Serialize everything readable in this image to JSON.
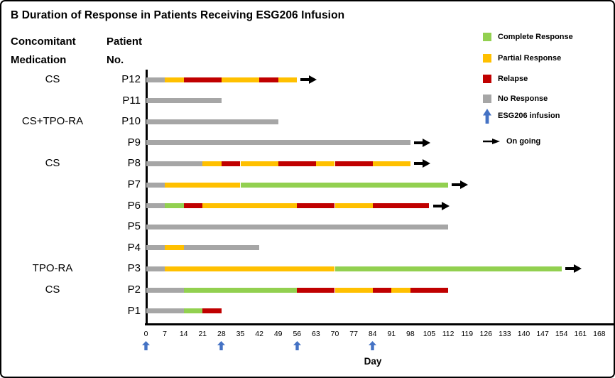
{
  "title": "B Duration of Response in Patients Receiving ESG206 Infusion",
  "left_header": {
    "line1": "Concomitant",
    "line2": "Medication"
  },
  "patient_header": {
    "line1": "Patient",
    "line2": "No."
  },
  "legend": {
    "items": [
      {
        "key": "complete",
        "label": "Complete Response",
        "type": "swatch",
        "color": "#92d050"
      },
      {
        "key": "partial",
        "label": "Partial Response",
        "type": "swatch",
        "color": "#ffc000"
      },
      {
        "key": "relapse",
        "label": "Relapse",
        "type": "swatch",
        "color": "#c00000"
      },
      {
        "key": "none",
        "label": "No Response",
        "type": "swatch",
        "color": "#a6a6a6"
      },
      {
        "key": "infusion",
        "label": "ESG206 infusion",
        "type": "up-arrow",
        "color": "#4472c4"
      },
      {
        "key": "ongoing",
        "label": "On going",
        "type": "right-arrow",
        "color": "#000000"
      }
    ]
  },
  "chart_data": {
    "type": "swimmer-timeline",
    "title": "B Duration of Response in Patients Receiving ESG206 Infusion",
    "xlabel": "Day",
    "xlim": [
      0,
      168
    ],
    "x_ticks": [
      0,
      7,
      14,
      21,
      28,
      35,
      42,
      49,
      56,
      63,
      70,
      77,
      84,
      91,
      98,
      105,
      112,
      119,
      126,
      133,
      140,
      147,
      154,
      161,
      168
    ],
    "infusion_days": [
      0,
      28,
      56,
      84
    ],
    "status_colors": {
      "complete": "#92d050",
      "partial": "#ffc000",
      "relapse": "#c00000",
      "none": "#a6a6a6"
    },
    "infusion_color": "#4472c4",
    "ongoing_color": "#000000",
    "patients": [
      {
        "id": "P12",
        "medication": "CS",
        "ongoing": true,
        "segments": [
          {
            "start": 0,
            "end": 7,
            "status": "none"
          },
          {
            "start": 7,
            "end": 14,
            "status": "partial"
          },
          {
            "start": 14,
            "end": 28,
            "status": "relapse"
          },
          {
            "start": 28,
            "end": 42,
            "status": "partial"
          },
          {
            "start": 42,
            "end": 49,
            "status": "relapse"
          },
          {
            "start": 49,
            "end": 56,
            "status": "partial"
          }
        ]
      },
      {
        "id": "P11",
        "medication": "",
        "ongoing": false,
        "segments": [
          {
            "start": 0,
            "end": 28,
            "status": "none"
          }
        ]
      },
      {
        "id": "P10",
        "medication": "CS+TPO-RA",
        "ongoing": false,
        "segments": [
          {
            "start": 0,
            "end": 49,
            "status": "none"
          }
        ]
      },
      {
        "id": "P9",
        "medication": "",
        "ongoing": true,
        "segments": [
          {
            "start": 0,
            "end": 98,
            "status": "none"
          }
        ]
      },
      {
        "id": "P8",
        "medication": "CS",
        "ongoing": true,
        "segments": [
          {
            "start": 0,
            "end": 21,
            "status": "none"
          },
          {
            "start": 21,
            "end": 28,
            "status": "partial"
          },
          {
            "start": 28,
            "end": 35,
            "status": "relapse"
          },
          {
            "start": 35,
            "end": 49,
            "status": "partial"
          },
          {
            "start": 49,
            "end": 63,
            "status": "relapse"
          },
          {
            "start": 63,
            "end": 70,
            "status": "partial"
          },
          {
            "start": 70,
            "end": 84,
            "status": "relapse"
          },
          {
            "start": 84,
            "end": 98,
            "status": "partial"
          }
        ]
      },
      {
        "id": "P7",
        "medication": "",
        "ongoing": true,
        "segments": [
          {
            "start": 0,
            "end": 7,
            "status": "none"
          },
          {
            "start": 7,
            "end": 35,
            "status": "partial"
          },
          {
            "start": 35,
            "end": 112,
            "status": "complete"
          }
        ]
      },
      {
        "id": "P6",
        "medication": "",
        "ongoing": true,
        "segments": [
          {
            "start": 0,
            "end": 7,
            "status": "none"
          },
          {
            "start": 7,
            "end": 14,
            "status": "complete"
          },
          {
            "start": 14,
            "end": 21,
            "status": "relapse"
          },
          {
            "start": 21,
            "end": 56,
            "status": "partial"
          },
          {
            "start": 56,
            "end": 70,
            "status": "relapse"
          },
          {
            "start": 70,
            "end": 84,
            "status": "partial"
          },
          {
            "start": 84,
            "end": 105,
            "status": "relapse"
          }
        ]
      },
      {
        "id": "P5",
        "medication": "",
        "ongoing": false,
        "segments": [
          {
            "start": 0,
            "end": 112,
            "status": "none"
          }
        ]
      },
      {
        "id": "P4",
        "medication": "",
        "ongoing": false,
        "segments": [
          {
            "start": 0,
            "end": 7,
            "status": "none"
          },
          {
            "start": 7,
            "end": 14,
            "status": "partial"
          },
          {
            "start": 14,
            "end": 42,
            "status": "none"
          }
        ]
      },
      {
        "id": "P3",
        "medication": "TPO-RA",
        "ongoing": true,
        "segments": [
          {
            "start": 0,
            "end": 7,
            "status": "none"
          },
          {
            "start": 7,
            "end": 70,
            "status": "partial"
          },
          {
            "start": 70,
            "end": 154,
            "status": "complete"
          }
        ]
      },
      {
        "id": "P2",
        "medication": "CS",
        "ongoing": false,
        "segments": [
          {
            "start": 0,
            "end": 14,
            "status": "none"
          },
          {
            "start": 14,
            "end": 56,
            "status": "complete"
          },
          {
            "start": 56,
            "end": 70,
            "status": "relapse"
          },
          {
            "start": 70,
            "end": 84,
            "status": "partial"
          },
          {
            "start": 84,
            "end": 91,
            "status": "relapse"
          },
          {
            "start": 91,
            "end": 98,
            "status": "partial"
          },
          {
            "start": 98,
            "end": 112,
            "status": "relapse"
          }
        ]
      },
      {
        "id": "P1",
        "medication": "",
        "ongoing": false,
        "segments": [
          {
            "start": 0,
            "end": 14,
            "status": "none"
          },
          {
            "start": 14,
            "end": 21,
            "status": "complete"
          },
          {
            "start": 21,
            "end": 28,
            "status": "relapse"
          }
        ]
      }
    ]
  }
}
